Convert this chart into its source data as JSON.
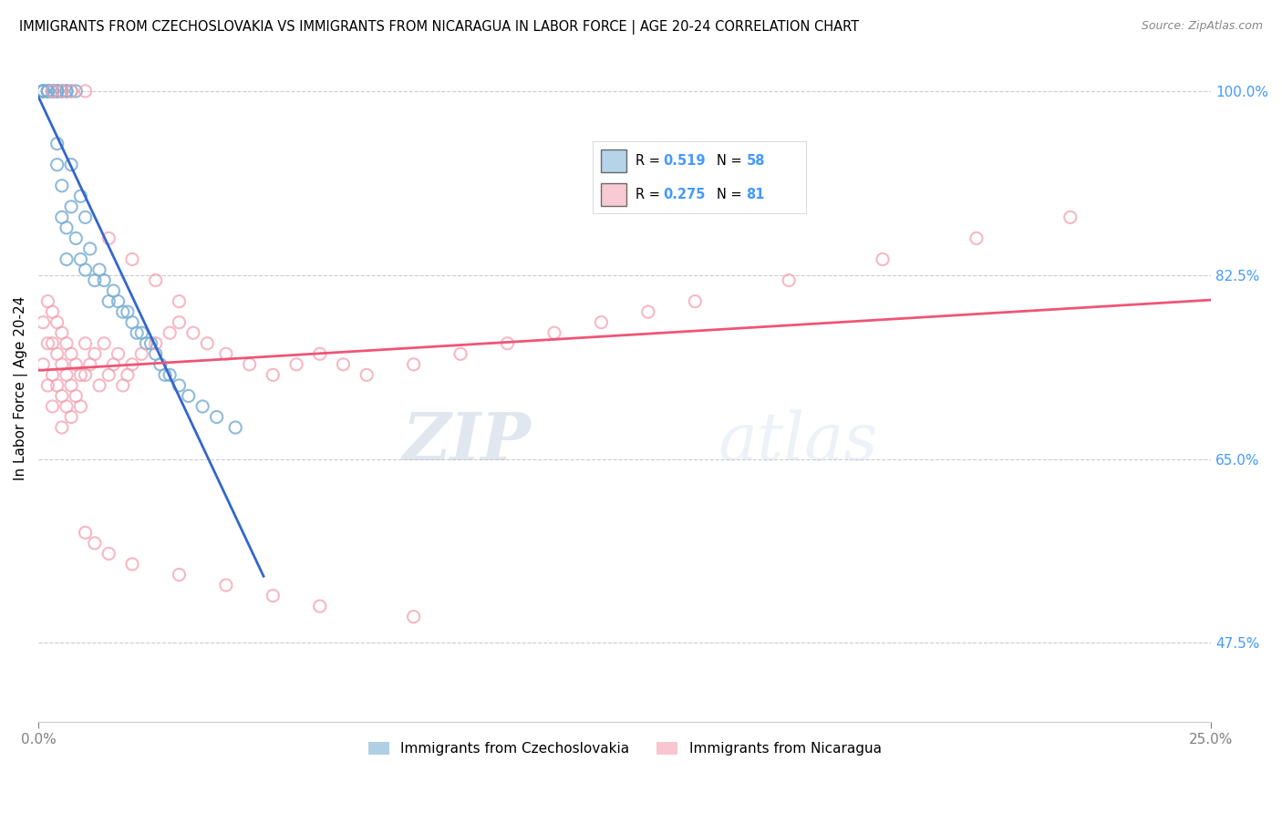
{
  "title": "IMMIGRANTS FROM CZECHOSLOVAKIA VS IMMIGRANTS FROM NICARAGUA IN LABOR FORCE | AGE 20-24 CORRELATION CHART",
  "source": "Source: ZipAtlas.com",
  "ylabel": "In Labor Force | Age 20-24",
  "x_min": 0.0,
  "x_max": 0.25,
  "y_min": 0.4,
  "y_max": 1.035,
  "legend1_label": "Immigrants from Czechoslovakia",
  "legend2_label": "Immigrants from Nicaragua",
  "R_czech": 0.519,
  "N_czech": 58,
  "R_nica": 0.275,
  "N_nica": 81,
  "color_czech": "#7BAFD4",
  "color_nica": "#F4A0B0",
  "line_color_czech": "#3366CC",
  "line_color_nica": "#EE5577",
  "ytick_color": "#4499FF",
  "czech_x": [
    0.001,
    0.001,
    0.001,
    0.001,
    0.001,
    0.002,
    0.002,
    0.002,
    0.002,
    0.003,
    0.003,
    0.003,
    0.003,
    0.004,
    0.004,
    0.004,
    0.004,
    0.004,
    0.005,
    0.005,
    0.005,
    0.005,
    0.006,
    0.006,
    0.006,
    0.006,
    0.007,
    0.007,
    0.007,
    0.008,
    0.008,
    0.009,
    0.009,
    0.01,
    0.01,
    0.011,
    0.012,
    0.013,
    0.014,
    0.015,
    0.016,
    0.017,
    0.018,
    0.019,
    0.02,
    0.021,
    0.022,
    0.023,
    0.024,
    0.025,
    0.026,
    0.027,
    0.028,
    0.03,
    0.032,
    0.035,
    0.038,
    0.042
  ],
  "czech_y": [
    1.0,
    1.0,
    1.0,
    1.0,
    1.0,
    1.0,
    1.0,
    1.0,
    1.0,
    1.0,
    1.0,
    1.0,
    1.0,
    1.0,
    1.0,
    1.0,
    0.95,
    0.93,
    1.0,
    1.0,
    0.91,
    0.88,
    1.0,
    1.0,
    0.87,
    0.84,
    1.0,
    0.93,
    0.89,
    1.0,
    0.86,
    0.9,
    0.84,
    0.88,
    0.83,
    0.85,
    0.82,
    0.83,
    0.82,
    0.8,
    0.81,
    0.8,
    0.79,
    0.79,
    0.78,
    0.77,
    0.77,
    0.76,
    0.76,
    0.75,
    0.74,
    0.73,
    0.73,
    0.72,
    0.71,
    0.7,
    0.69,
    0.68
  ],
  "nica_x": [
    0.001,
    0.001,
    0.002,
    0.002,
    0.002,
    0.003,
    0.003,
    0.003,
    0.003,
    0.004,
    0.004,
    0.004,
    0.005,
    0.005,
    0.005,
    0.005,
    0.006,
    0.006,
    0.006,
    0.007,
    0.007,
    0.007,
    0.008,
    0.008,
    0.009,
    0.009,
    0.01,
    0.01,
    0.011,
    0.012,
    0.013,
    0.014,
    0.015,
    0.016,
    0.017,
    0.018,
    0.019,
    0.02,
    0.022,
    0.025,
    0.028,
    0.03,
    0.033,
    0.036,
    0.04,
    0.045,
    0.05,
    0.055,
    0.06,
    0.065,
    0.07,
    0.08,
    0.09,
    0.1,
    0.11,
    0.12,
    0.13,
    0.14,
    0.16,
    0.18,
    0.2,
    0.22,
    0.003,
    0.005,
    0.007,
    0.01,
    0.015,
    0.02,
    0.025,
    0.03,
    0.01,
    0.012,
    0.015,
    0.02,
    0.03,
    0.04,
    0.05,
    0.06,
    0.08
  ],
  "nica_y": [
    0.78,
    0.74,
    0.8,
    0.76,
    0.72,
    0.79,
    0.76,
    0.73,
    0.7,
    0.78,
    0.75,
    0.72,
    0.77,
    0.74,
    0.71,
    0.68,
    0.76,
    0.73,
    0.7,
    0.75,
    0.72,
    0.69,
    0.74,
    0.71,
    0.73,
    0.7,
    0.76,
    0.73,
    0.74,
    0.75,
    0.72,
    0.76,
    0.73,
    0.74,
    0.75,
    0.72,
    0.73,
    0.74,
    0.75,
    0.76,
    0.77,
    0.78,
    0.77,
    0.76,
    0.75,
    0.74,
    0.73,
    0.74,
    0.75,
    0.74,
    0.73,
    0.74,
    0.75,
    0.76,
    0.77,
    0.78,
    0.79,
    0.8,
    0.82,
    0.84,
    0.86,
    0.88,
    1.0,
    1.0,
    1.0,
    1.0,
    0.86,
    0.84,
    0.82,
    0.8,
    0.58,
    0.57,
    0.56,
    0.55,
    0.54,
    0.53,
    0.52,
    0.51,
    0.5
  ],
  "wm_zip_color": "#BBCCDD",
  "wm_atlas_color": "#AABBCC"
}
